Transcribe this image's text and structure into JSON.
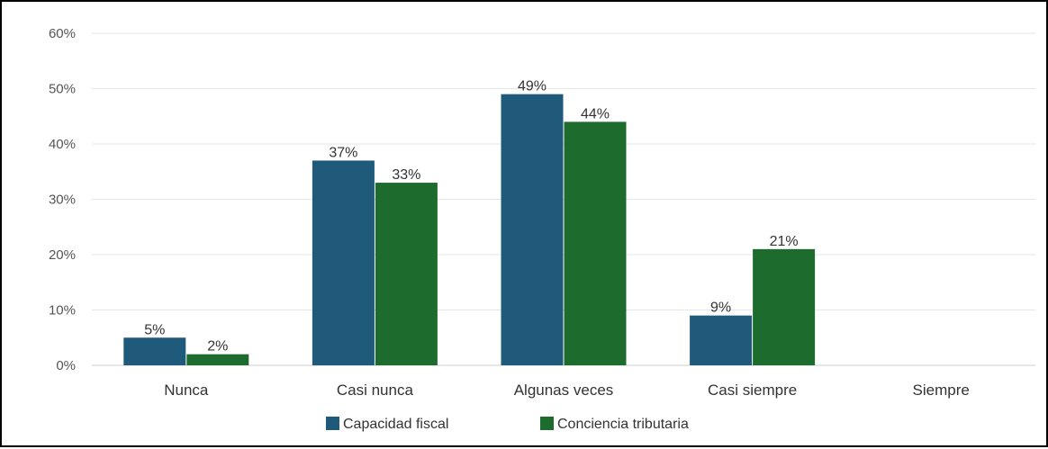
{
  "chart_data": {
    "type": "bar",
    "categories": [
      "Nunca",
      "Casi nunca",
      "Algunas veces",
      "Casi siempre",
      "Siempre"
    ],
    "series": [
      {
        "name": "Capacidad fiscal",
        "values": [
          5,
          37,
          49,
          9,
          0
        ],
        "labels": [
          "5%",
          "37%",
          "49%",
          "9%",
          ""
        ],
        "color": "#1f5a7a"
      },
      {
        "name": "Conciencia tributaria",
        "values": [
          2,
          33,
          44,
          21,
          0
        ],
        "labels": [
          "2%",
          "33%",
          "44%",
          "21%",
          ""
        ],
        "color": "#1e6b2e"
      }
    ],
    "ylim": [
      0,
      60
    ],
    "yticks": [
      0,
      10,
      20,
      30,
      40,
      50,
      60
    ],
    "ytick_labels": [
      "0%",
      "10%",
      "20%",
      "30%",
      "40%",
      "50%",
      "60%"
    ],
    "title": "",
    "xlabel": "",
    "ylabel": "",
    "grid": true,
    "legend": "bottom"
  }
}
